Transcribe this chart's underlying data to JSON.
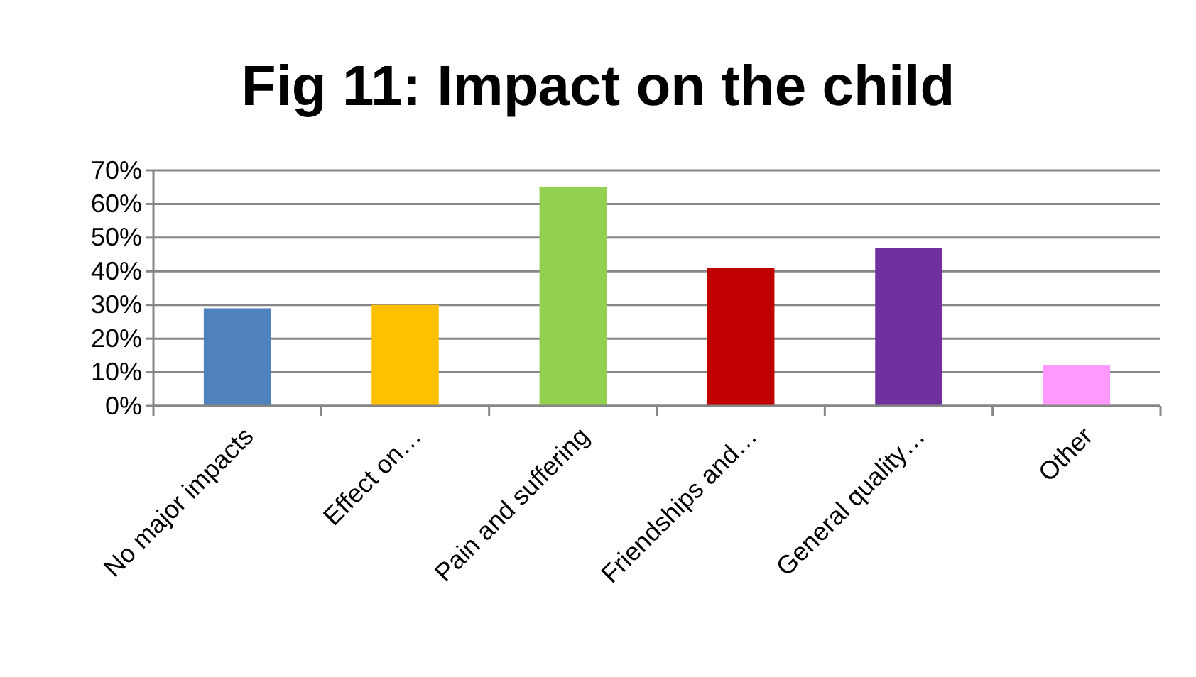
{
  "chart_data": {
    "type": "bar",
    "title": "Fig 11: Impact on the child",
    "categories": [
      "No major impacts",
      "Effect on…",
      "Pain and suffering",
      "Friendships and…",
      "General quality…",
      "Other"
    ],
    "values": [
      29,
      30,
      65,
      41,
      47,
      12
    ],
    "colors": [
      "#4f81bd",
      "#ffc000",
      "#92d050",
      "#c00000",
      "#7030a0",
      "#ff99ff"
    ],
    "ylim": [
      0,
      70
    ],
    "yticks": [
      {
        "value": 0,
        "label": "0%"
      },
      {
        "value": 10,
        "label": "10%"
      },
      {
        "value": 20,
        "label": "20%"
      },
      {
        "value": 30,
        "label": "30%"
      },
      {
        "value": 40,
        "label": "40%"
      },
      {
        "value": 50,
        "label": "50%"
      },
      {
        "value": 60,
        "label": "60%"
      },
      {
        "value": 70,
        "label": "70%"
      }
    ],
    "grid": "y"
  }
}
